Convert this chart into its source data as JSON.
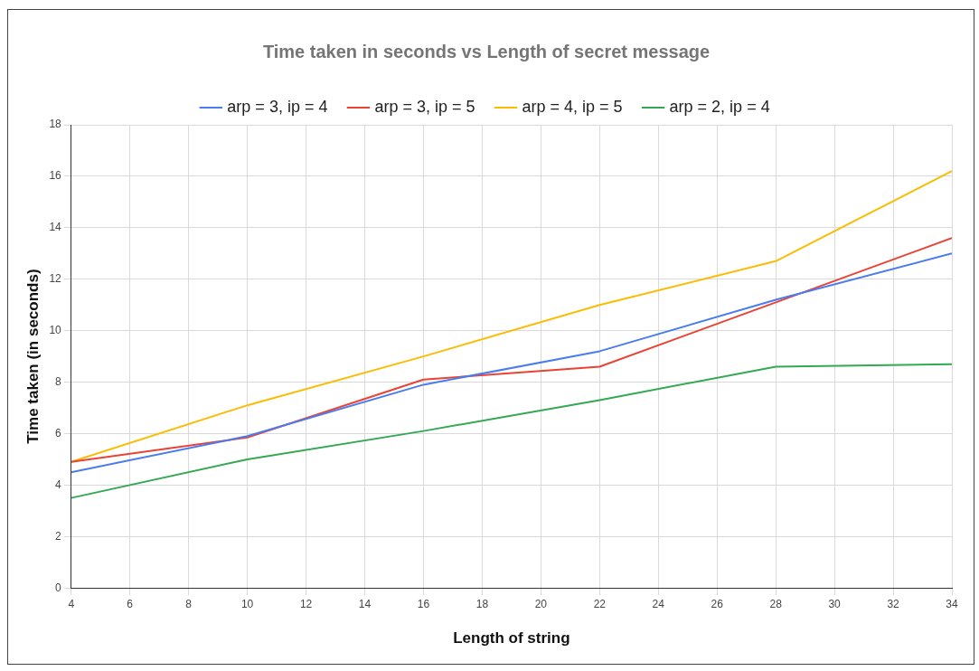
{
  "chart_data": {
    "type": "line",
    "title": "Time taken in seconds vs Length of secret message",
    "xlabel": "Length of string",
    "ylabel": "Time taken (in seconds)",
    "x": [
      4,
      10,
      16,
      22,
      28,
      34
    ],
    "series": [
      {
        "name": "arp = 3, ip = 4",
        "color": "#4a7cf0",
        "values": [
          4.5,
          5.9,
          7.9,
          9.2,
          11.2,
          13.0
        ]
      },
      {
        "name": "arp = 3, ip = 5",
        "color": "#ea4335",
        "values": [
          4.9,
          5.85,
          8.1,
          8.6,
          11.1,
          13.6
        ]
      },
      {
        "name": "arp = 4, ip = 5",
        "color": "#fbbc04",
        "values": [
          4.9,
          7.1,
          9.0,
          11.0,
          12.7,
          16.2
        ]
      },
      {
        "name": "arp = 2, ip = 4",
        "color": "#34a853",
        "values": [
          3.5,
          5.0,
          6.1,
          7.3,
          8.6,
          8.7
        ]
      }
    ],
    "xlim": [
      4,
      34
    ],
    "xticks": [
      4,
      6,
      8,
      10,
      12,
      14,
      16,
      18,
      20,
      22,
      24,
      26,
      28,
      30,
      32,
      34
    ],
    "ylim": [
      0,
      18
    ],
    "yticks": [
      0,
      2,
      4,
      6,
      8,
      10,
      12,
      14,
      16,
      18
    ],
    "grid": true,
    "legend": "top",
    "marker": "none",
    "line_style": "solid"
  }
}
